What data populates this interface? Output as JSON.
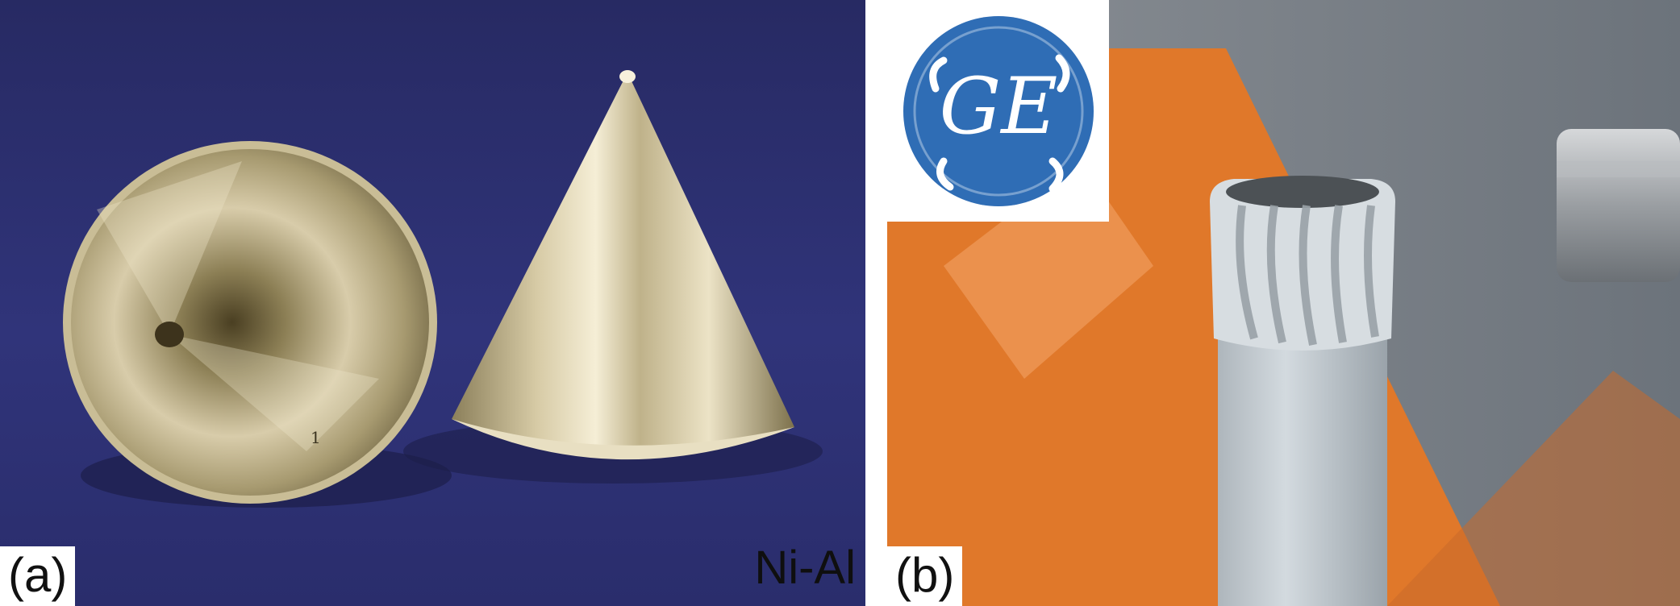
{
  "panels": {
    "a": {
      "label": "(a)",
      "material_text": "Ni-Al",
      "subject": "two polished metal cones on blue cloth",
      "colors": {
        "background": "#2c2f73",
        "metal_light": "#f4ecd0",
        "metal_mid": "#b8ab85",
        "metal_dark": "#6f6543"
      }
    },
    "b": {
      "label": "(b)",
      "logo_icon": "ge-logo-icon",
      "logo_text": "GE",
      "subject": "grey fluted cylindrical part in front of orange machine",
      "colors": {
        "logo_blue": "#2f6db5",
        "orange": "#e07a2a",
        "grey_bg": "#7a8088",
        "part": "#c4ccd2"
      }
    }
  }
}
